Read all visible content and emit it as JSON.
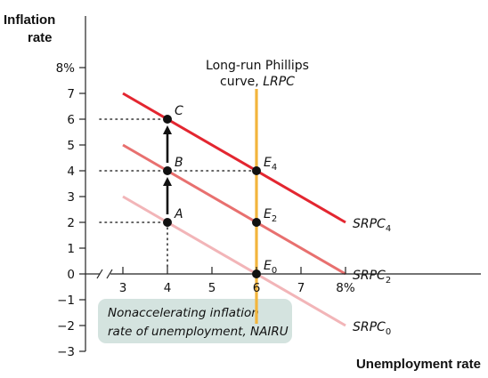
{
  "chart_data": {
    "type": "line",
    "title": "",
    "ylabel_line1": "Inflation",
    "ylabel_line2": "rate",
    "xlabel": "Unemployment rate",
    "xlim": [
      3,
      8
    ],
    "ylim": [
      -3,
      8
    ],
    "x_ticks": [
      {
        "value": 3,
        "label": "3"
      },
      {
        "value": 4,
        "label": "4"
      },
      {
        "value": 5,
        "label": "5"
      },
      {
        "value": 6,
        "label": "6"
      },
      {
        "value": 7,
        "label": "7"
      },
      {
        "value": 8,
        "label": "8%"
      }
    ],
    "y_ticks": [
      {
        "value": 8,
        "label": "8%"
      },
      {
        "value": 7,
        "label": "7"
      },
      {
        "value": 6,
        "label": "6"
      },
      {
        "value": 5,
        "label": "5"
      },
      {
        "value": 4,
        "label": "4"
      },
      {
        "value": 3,
        "label": "3"
      },
      {
        "value": 2,
        "label": "2"
      },
      {
        "value": 1,
        "label": "1"
      },
      {
        "value": 0,
        "label": "0"
      },
      {
        "value": -1,
        "label": "−1"
      },
      {
        "value": -2,
        "label": "−2"
      },
      {
        "value": -3,
        "label": "−3"
      }
    ],
    "series": [
      {
        "name": "SRPC",
        "sub": "0",
        "color": "#f2b5b8",
        "x": [
          3,
          8
        ],
        "y": [
          3,
          -2
        ]
      },
      {
        "name": "SRPC",
        "sub": "2",
        "color": "#e8706f",
        "x": [
          3,
          8
        ],
        "y": [
          5,
          0
        ]
      },
      {
        "name": "SRPC",
        "sub": "4",
        "color": "#e32630",
        "x": [
          3,
          8
        ],
        "y": [
          7,
          2
        ]
      }
    ],
    "lrpc": {
      "x": 6,
      "color": "#f2b53c",
      "label_line1": "Long-run Phillips",
      "label_line2": "curve,",
      "label_italic": "LRPC"
    },
    "points": [
      {
        "label": "A",
        "x": 4,
        "y": 2
      },
      {
        "label": "B",
        "x": 4,
        "y": 4
      },
      {
        "label": "C",
        "x": 4,
        "y": 6
      },
      {
        "label": "E",
        "sub": "0",
        "x": 6,
        "y": 0
      },
      {
        "label": "E",
        "sub": "2",
        "x": 6,
        "y": 2
      },
      {
        "label": "E",
        "sub": "4",
        "x": 6,
        "y": 4
      }
    ],
    "arrows": [
      {
        "from": [
          4,
          2
        ],
        "to": [
          4,
          4
        ]
      },
      {
        "from": [
          4,
          4
        ],
        "to": [
          4,
          6
        ]
      }
    ],
    "nairu_box": {
      "line1": "Nonaccelerating inflation",
      "line2": "rate of unemployment, NAIRU",
      "fill": "#d4e3df"
    },
    "colors": {
      "axis": "#222222",
      "dots": "#111111",
      "lrpc": "#f2b53c"
    }
  }
}
